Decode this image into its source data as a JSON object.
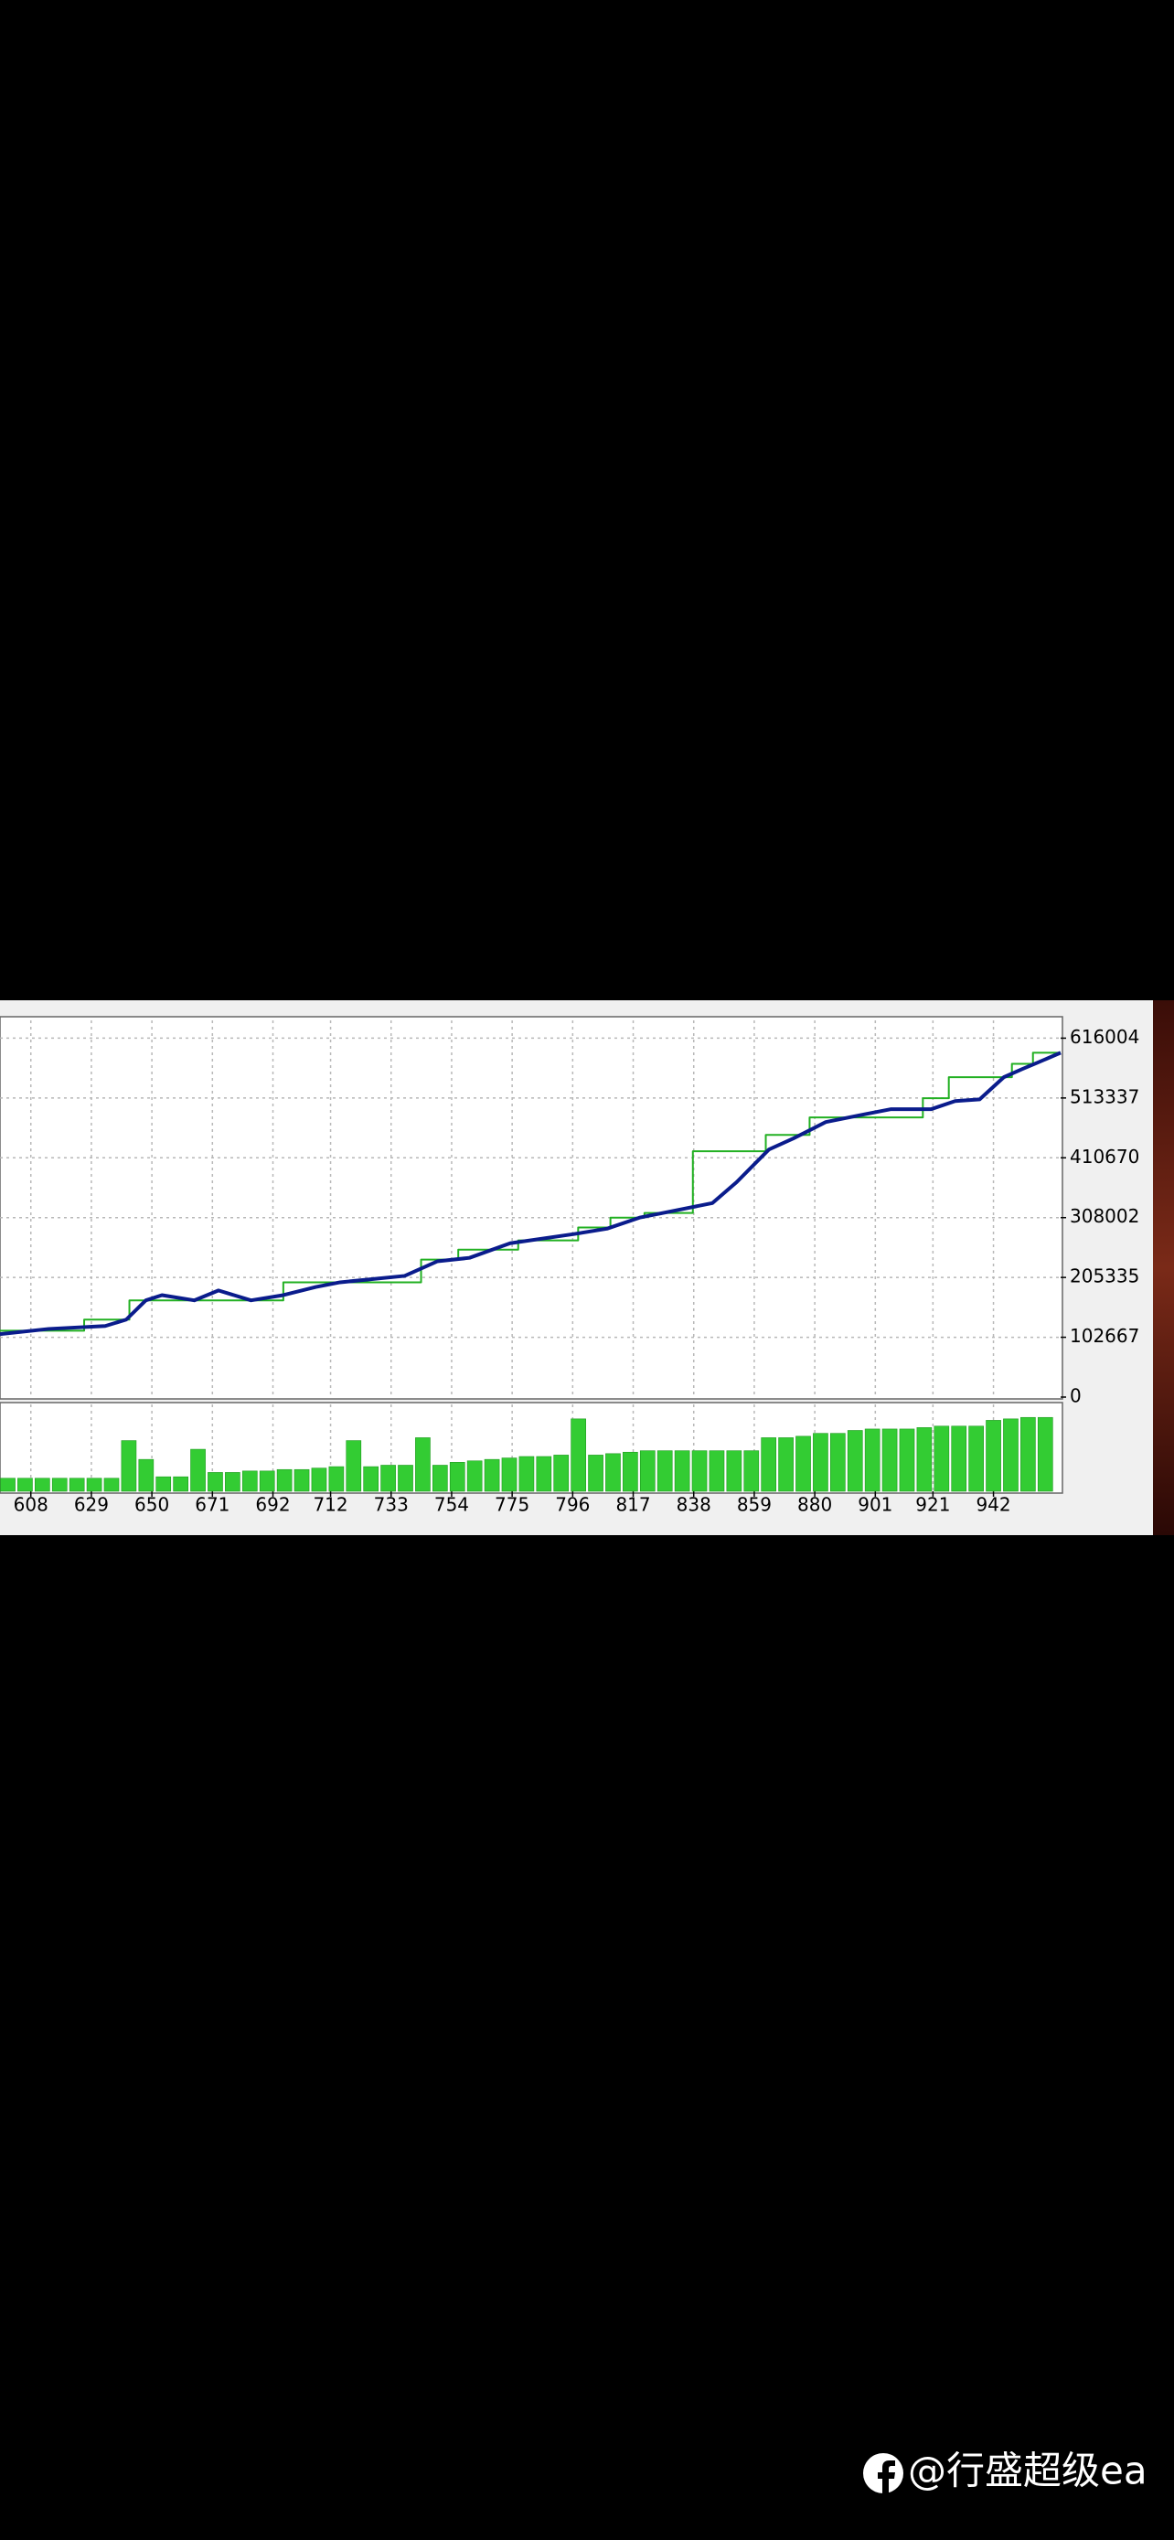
{
  "chart_data": [
    {
      "type": "line",
      "xlim": [
        597.3,
        965.3
      ],
      "ylim": [
        0,
        646500
      ],
      "yticks": [
        0,
        102667,
        205335,
        308002,
        410670,
        513337,
        616004
      ],
      "grid": true,
      "series": [
        {
          "color": "#22b022",
          "step": true,
          "x": [
            597.3,
            626.5,
            642.2,
            695.6,
            743.4,
            756.3,
            777.1,
            797.9,
            809.1,
            820.9,
            837.7,
            863.0,
            878.2,
            917.5,
            926.5,
            948.4,
            955.7,
            965.3
          ],
          "values": [
            114000,
            133000,
            166000,
            197000,
            236000,
            253000,
            269000,
            291000,
            308000,
            316000,
            422000,
            450000,
            480000,
            513000,
            549000,
            572000,
            591000,
            591000
          ]
        },
        {
          "color": "#0a1c8c",
          "step": false,
          "x": [
            597.3,
            614.2,
            633.8,
            641.1,
            647.9,
            653.5,
            664.7,
            673.1,
            684.4,
            695.6,
            706.9,
            715.3,
            737.7,
            749.0,
            760.2,
            774.3,
            796.7,
            807.9,
            819.2,
            830.4,
            844.5,
            852.9,
            864.1,
            872.6,
            883.8,
            897.9,
            906.3,
            920.3,
            928.7,
            937.2,
            945.6,
            952.0,
            957.3,
            965.3
          ],
          "values": [
            108000,
            117000,
            122000,
            133000,
            166000,
            175000,
            166000,
            183000,
            166000,
            175000,
            189000,
            197000,
            208000,
            233000,
            239000,
            264000,
            280000,
            289000,
            308000,
            319000,
            333000,
            369000,
            425000,
            444000,
            472000,
            486000,
            494000,
            494000,
            508000,
            511000,
            549000,
            563000,
            574000,
            591000
          ]
        }
      ]
    },
    {
      "type": "bar",
      "xlim": [
        597.3,
        965.3
      ],
      "ylim": [
        0,
        60
      ],
      "xticks": [
        608,
        629,
        650,
        671,
        692,
        712,
        733,
        754,
        775,
        796,
        817,
        838,
        859,
        880,
        901,
        921,
        942
      ],
      "color": "#33cc33",
      "x": [
        600,
        606,
        612,
        618,
        624,
        630,
        636,
        642,
        648,
        654,
        660,
        666,
        672,
        678,
        684,
        690,
        696,
        702,
        708,
        714,
        720,
        726,
        732,
        738,
        744,
        750,
        756,
        762,
        768,
        774,
        780,
        786,
        792,
        798,
        804,
        810,
        816,
        822,
        828,
        834,
        840,
        846,
        852,
        858,
        864,
        870,
        876,
        882,
        888,
        894,
        900,
        906,
        912,
        918,
        924,
        930,
        936,
        942,
        948,
        954,
        960
      ],
      "values": [
        9,
        9,
        9,
        9,
        9,
        9,
        9,
        35,
        22,
        10,
        10,
        29,
        13,
        13,
        14,
        14,
        15,
        15,
        16,
        17,
        35,
        17,
        18,
        18,
        37,
        18,
        20,
        21,
        22,
        23,
        24,
        24,
        25,
        50,
        25,
        26,
        27,
        28,
        28,
        28,
        28,
        28,
        28,
        28,
        37,
        37,
        38,
        40,
        40,
        42,
        43,
        43,
        43,
        44,
        45,
        45,
        45,
        49,
        50,
        51,
        51
      ]
    }
  ],
  "watermark": "@行盛超级ea"
}
